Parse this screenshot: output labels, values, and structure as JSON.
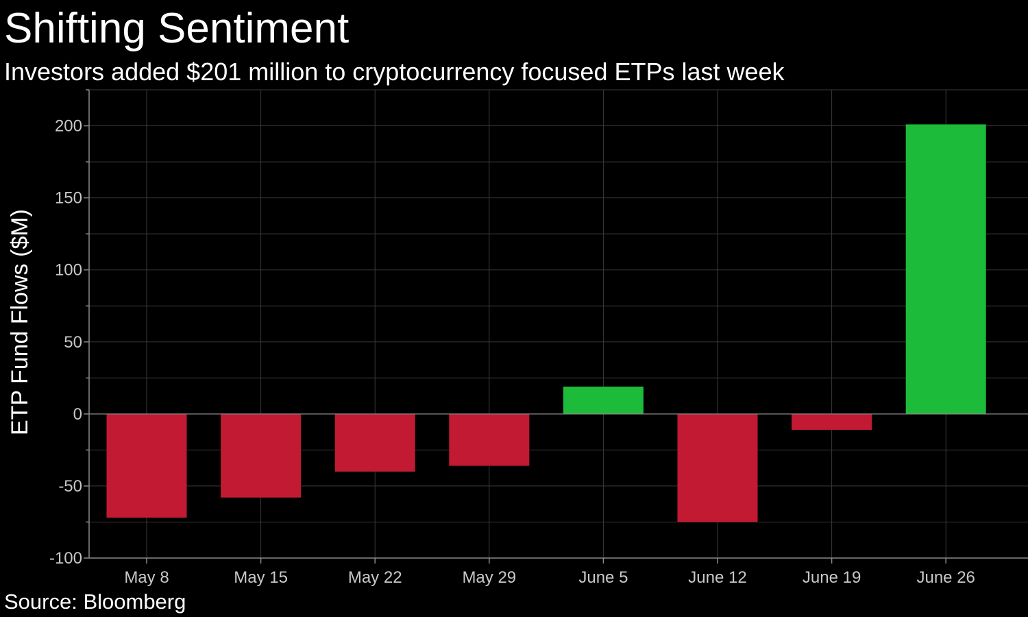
{
  "header": {
    "title": "Shifting Sentiment",
    "subtitle": "Investors added $201 million to cryptocurrency focused ETPs last week"
  },
  "footer": {
    "source": "Source: Bloomberg"
  },
  "colors": {
    "positive": "#1dbb3a",
    "negative": "#c21a33",
    "grid": "#3a3a3a",
    "axis": "#8a8a8a"
  },
  "chart_data": {
    "type": "bar",
    "categories": [
      "May 8",
      "May 15",
      "May 22",
      "May 29",
      "June 5",
      "June 12",
      "June 19",
      "June 26"
    ],
    "values": [
      -72,
      -58,
      -40,
      -36,
      19,
      -75,
      -11,
      201
    ],
    "ylabel": "ETP Fund Flows ($M)",
    "xlabel": "",
    "ylim": [
      -100,
      225
    ],
    "yticks": [
      200,
      150,
      100,
      50,
      0,
      -50,
      -100
    ],
    "ytick_labels": [
      "200",
      "150",
      "100",
      "50",
      "0",
      "-50",
      "-100"
    ],
    "grid": true,
    "legend": "none"
  }
}
